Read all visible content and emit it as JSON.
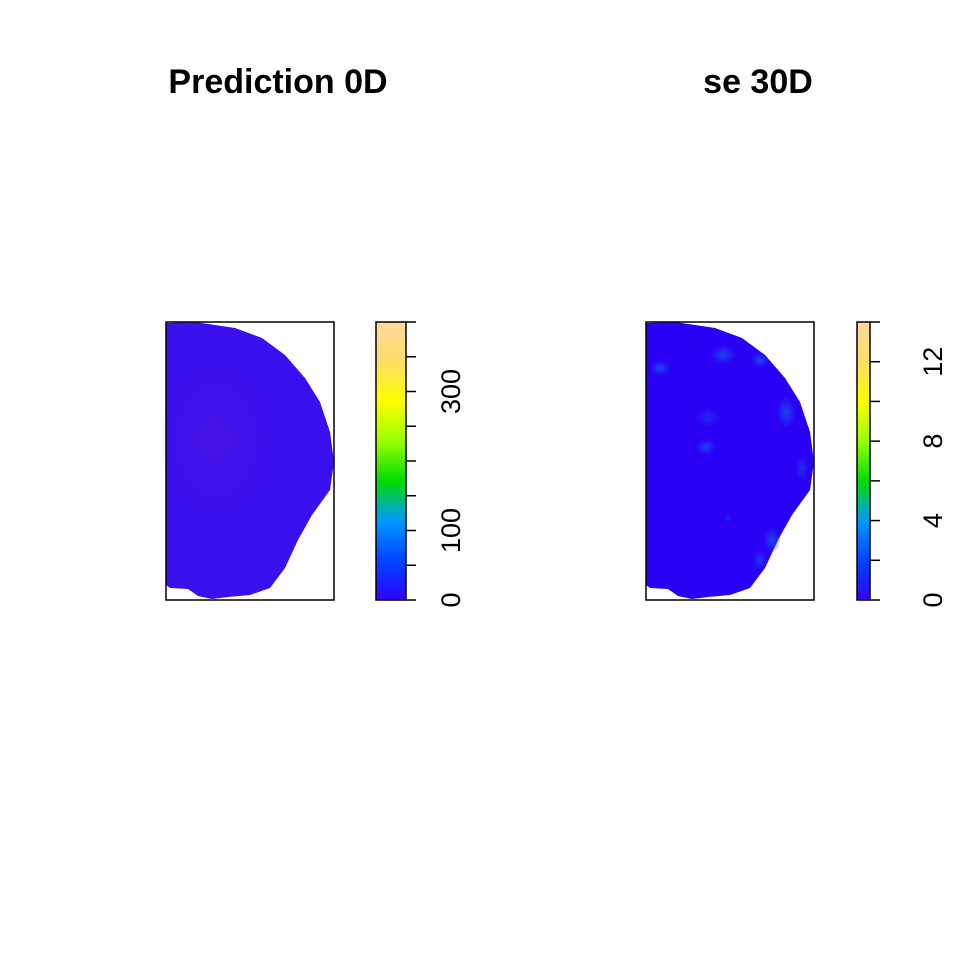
{
  "chart_data": [
    {
      "type": "heatmap",
      "title": "Prediction 0D",
      "legend_range": [
        0,
        400
      ],
      "legend_ticks": [
        0,
        50,
        100,
        150,
        200,
        250,
        300,
        350,
        400
      ],
      "legend_tick_labels": [
        {
          "value": 0,
          "label": "0"
        },
        {
          "value": 100,
          "label": "100"
        },
        {
          "value": 300,
          "label": "300"
        }
      ],
      "field_range_estimate": [
        15,
        45
      ],
      "palette": [
        "#3300ff",
        "#0044ff",
        "#0099ff",
        "#00dd00",
        "#99ff00",
        "#ffff00",
        "#ffdd66",
        "#ffd9a0"
      ],
      "fill_color": "#3b10ee",
      "highlight_color": "#4a18dd",
      "legend": "right",
      "axes": "none"
    },
    {
      "type": "heatmap",
      "title": "se 30D",
      "legend_range": [
        0,
        14
      ],
      "legend_ticks": [
        0,
        2,
        4,
        6,
        8,
        10,
        12,
        14
      ],
      "legend_tick_labels": [
        {
          "value": 0,
          "label": "0"
        },
        {
          "value": 4,
          "label": "4"
        },
        {
          "value": 8,
          "label": "8"
        },
        {
          "value": 12,
          "label": "12"
        }
      ],
      "field_range_estimate": [
        1,
        3
      ],
      "palette": [
        "#3300ff",
        "#0044ff",
        "#0099ff",
        "#00dd00",
        "#99ff00",
        "#ffff00",
        "#ffdd66",
        "#ffd9a0"
      ],
      "fill_color": "#2a00f5",
      "highlight_color": "#1a4cf0",
      "legend": "right",
      "axes": "none"
    }
  ]
}
